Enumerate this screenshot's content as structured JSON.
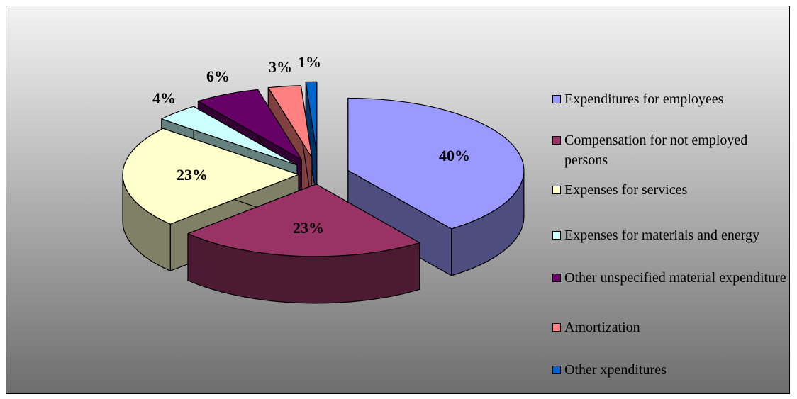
{
  "chart_data": {
    "type": "pie",
    "title": "",
    "labels": [
      "Expenditures for employees",
      "Compensation for not employed persons",
      "Expenses for services",
      "Expenses for materials and energy",
      "Other unspecified material expenditure",
      "Amortization",
      "Other xpenditures"
    ],
    "values": [
      40,
      23,
      23,
      4,
      6,
      3,
      1
    ],
    "value_labels": [
      "40%",
      "23%",
      "23%",
      "4%",
      "6%",
      "3%",
      "1%"
    ],
    "colors": [
      "#9999ff",
      "#993366",
      "#ffffcc",
      "#ccffff",
      "#660066",
      "#ff8080",
      "#0066cc"
    ],
    "exploded": true,
    "style": "3d",
    "legend_position": "right"
  }
}
